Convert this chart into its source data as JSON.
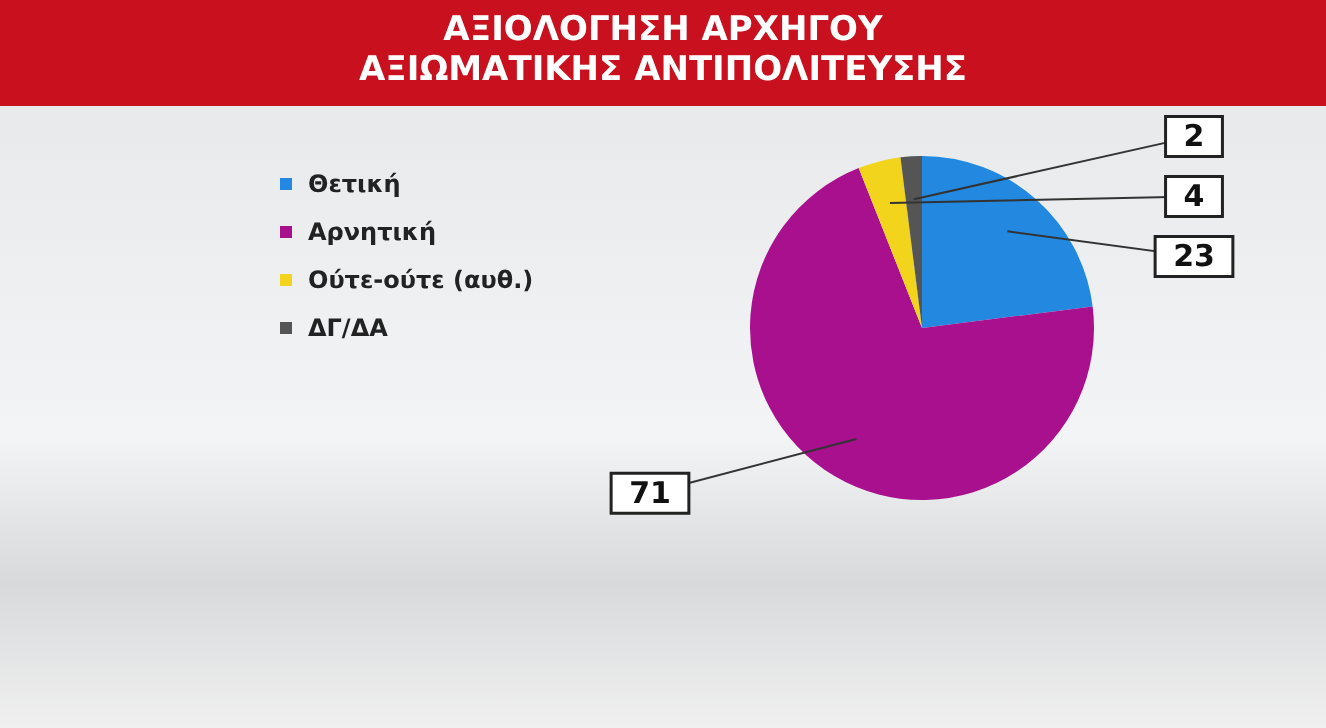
{
  "chart_data": {
    "type": "pie",
    "title": "ΑΞΙΟΛΟΓΗΣΗ ΑΡΧΗΓΟΥ\nΑΞΙΩΜΑΤΙΚΗΣ ΑΝΤΙΠΟΛΙΤΕΥΣΗΣ",
    "categories": [
      "Θετική",
      "Αρνητική",
      "Ούτε-ούτε (αυθ.)",
      "ΔΓ/ΔΑ"
    ],
    "values": [
      23,
      71,
      4,
      2
    ],
    "colors": [
      "#2288e0",
      "#a8108e",
      "#f2d41c",
      "#555555"
    ],
    "legend": "left",
    "data_labels": true
  }
}
